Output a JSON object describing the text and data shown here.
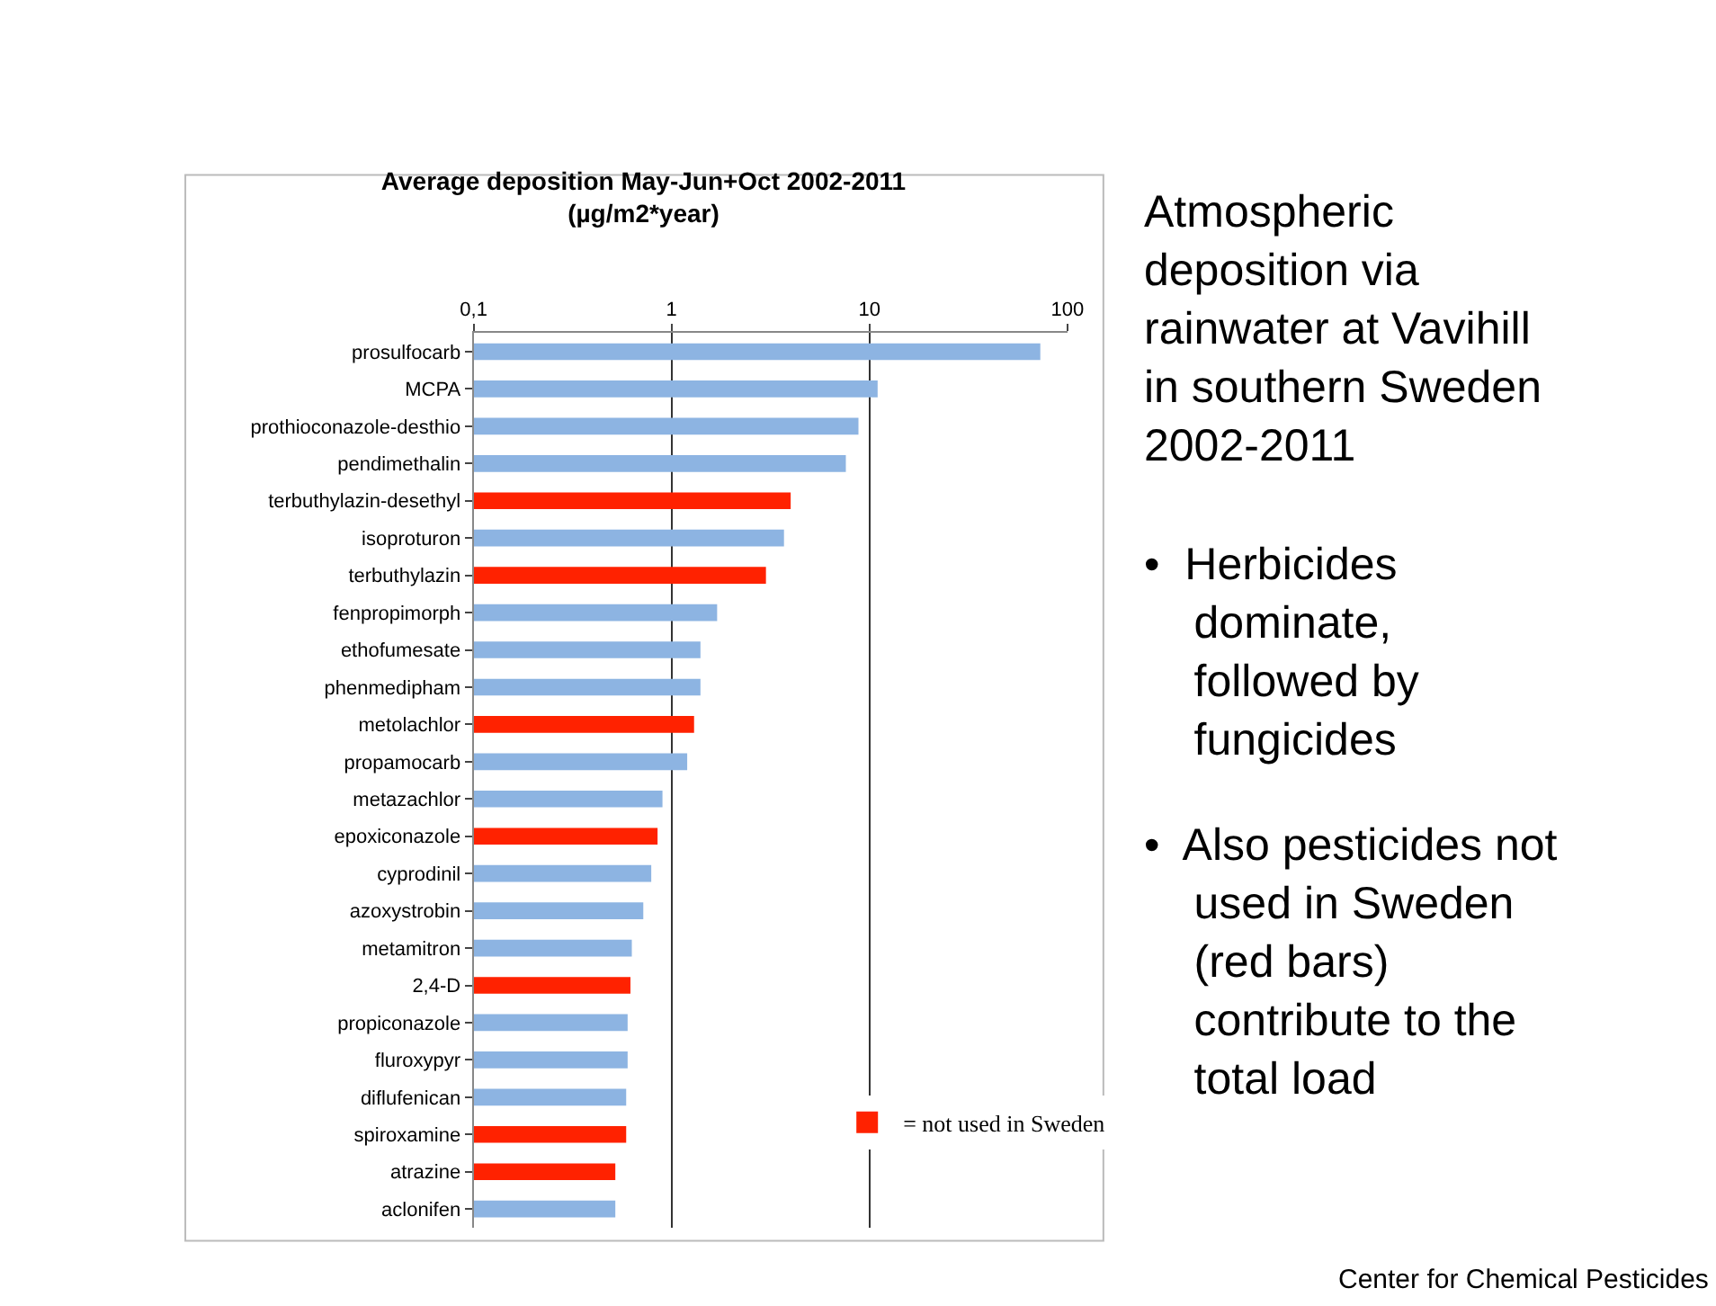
{
  "chart_data": {
    "type": "bar",
    "orientation": "horizontal",
    "log": "x",
    "title": "Average deposition May-Jun+Oct 2002-2011\n(µg/m2*year)",
    "categories": [
      "prosulfocarb",
      "MCPA",
      "prothioconazole-desthio",
      "pendimethalin",
      "terbuthylazin-desethyl",
      "isoproturon",
      "terbuthylazin",
      "fenpropimorph",
      "ethofumesate",
      "phenmedipham",
      "metolachlor",
      "propamocarb",
      "metazachlor",
      "epoxiconazole",
      "cyprodinil",
      "azoxystrobin",
      "metamitron",
      "2,4-D",
      "propiconazole",
      "fluroxypyr",
      "diflufenican",
      "spiroxamine",
      "atrazine",
      "aclonifen"
    ],
    "series": [
      {
        "color": "#8db4e2",
        "values": [
          73,
          11,
          8.8,
          7.6,
          null,
          3.7,
          null,
          1.7,
          1.4,
          1.4,
          null,
          1.2,
          0.9,
          null,
          0.79,
          0.72,
          0.63,
          null,
          0.6,
          0.6,
          0.59,
          null,
          null,
          0.52
        ]
      },
      {
        "name": "= not used in Sweden",
        "color": "#ff2200",
        "values": [
          null,
          null,
          null,
          null,
          4.0,
          null,
          3.0,
          null,
          null,
          null,
          1.3,
          null,
          null,
          0.85,
          null,
          null,
          null,
          0.62,
          null,
          null,
          null,
          0.59,
          0.52,
          null
        ]
      }
    ],
    "xlim": [
      0.1,
      100
    ],
    "xticks": [
      {
        "value": 0.1,
        "label": "0,1"
      },
      1,
      10,
      100
    ],
    "grid": "x",
    "legend": "bottom right",
    "annotations": [
      "Atmospheric\ndeposition via\nrainwater at Vavihill\nin southern Sweden\n2002-2011",
      "•  Herbicides\n    dominate,\n    followed by\n    fungicides",
      "•  Also pesticides not\n    used in Sweden\n    (red bars)\n    contribute to the\n    total load",
      "Center for Chemical Pesticides"
    ]
  }
}
